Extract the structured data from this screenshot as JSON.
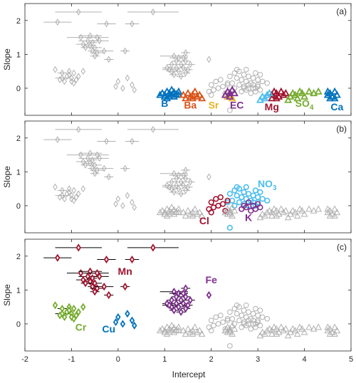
{
  "chart_data": {
    "type": "scatter",
    "xlabel": "Intercept",
    "ylabel": "Slope",
    "xlim": [
      -2,
      5
    ],
    "ylim": [
      -0.8,
      2.5
    ],
    "xticks": [
      "-2",
      "-1",
      "0",
      "1",
      "2",
      "3",
      "4",
      "5"
    ],
    "yticks": [
      "0",
      "1",
      "2"
    ],
    "grid": false,
    "colors": {
      "gray": "#b0b0b0",
      "B": "#0072bd",
      "Ba": "#d95319",
      "Sr": "#edb120",
      "EC": "#7e2f8e",
      "Mg": "#a2142f",
      "SO4": "#77ac30",
      "Ca": "#0072bd",
      "Cl": "#a2142f",
      "K": "#7e2f8e",
      "NO3": "#4dbeee",
      "Mn": "#a2142f",
      "Fe": "#7e2f8e",
      "Cr": "#77ac30",
      "Cu": "#0072bd"
    },
    "groups": {
      "diamonds": {
        "Mn": [
          [
            -1.3,
            1.95,
            0.3
          ],
          [
            -0.85,
            2.25,
            0.5
          ],
          [
            -0.25,
            1.9,
            0.2
          ],
          [
            0.75,
            2.25,
            0.55
          ],
          [
            0.3,
            1.9,
            0.15
          ],
          [
            -0.8,
            1.5,
            0.3
          ],
          [
            -0.6,
            1.55,
            0.25
          ],
          [
            -0.45,
            1.5,
            0.25
          ],
          [
            -0.4,
            1.4,
            0.2
          ],
          [
            -0.65,
            1.4,
            0.2
          ],
          [
            -0.75,
            1.3,
            0.15
          ],
          [
            -0.6,
            1.25,
            0.1
          ],
          [
            -0.5,
            1.2,
            0.15
          ],
          [
            -0.7,
            1.2,
            0.1
          ],
          [
            -0.55,
            1.1,
            0.1
          ],
          [
            -0.45,
            1.05,
            0.15
          ],
          [
            -0.3,
            1.1,
            0.2
          ],
          [
            -0.5,
            0.95,
            0.1
          ],
          [
            -0.2,
            0.85,
            0.1
          ],
          [
            0.15,
            1.1,
            0.1
          ],
          [
            -0.55,
            1.35,
            0.1
          ]
        ],
        "Fe": [
          [
            1.2,
            0.95,
            0.3
          ],
          [
            1.3,
            0.9,
            0.2
          ],
          [
            1.45,
            1.05,
            0.1
          ],
          [
            1.4,
            0.9,
            0.1
          ],
          [
            1.25,
            0.8,
            0.1
          ],
          [
            1.45,
            0.8,
            0.1
          ],
          [
            1.35,
            0.7,
            0.1
          ],
          [
            1.15,
            0.7,
            0.1
          ],
          [
            1.25,
            0.6,
            0.1
          ],
          [
            1.4,
            0.6,
            0.1
          ],
          [
            1.05,
            0.6,
            0.1
          ],
          [
            1.15,
            0.5,
            0.1
          ],
          [
            1.3,
            0.5,
            0.1
          ],
          [
            1.45,
            0.45,
            0.1
          ],
          [
            1.2,
            0.4,
            0.1
          ],
          [
            1.35,
            0.35,
            0.1
          ],
          [
            1.5,
            0.55,
            0.1
          ],
          [
            1.55,
            0.7,
            0.1
          ],
          [
            1.95,
            0.85,
            0
          ],
          [
            1.1,
            0.55,
            0.15
          ]
        ],
        "Cr": [
          [
            -1.35,
            0.55,
            0
          ],
          [
            -1.2,
            0.45,
            0.1
          ],
          [
            -1.05,
            0.5,
            0
          ],
          [
            -1.2,
            0.3,
            0.15
          ],
          [
            -1.1,
            0.35,
            0
          ],
          [
            -1.0,
            0.3,
            0
          ],
          [
            -0.9,
            0.25,
            0
          ],
          [
            -1.15,
            0.2,
            0
          ],
          [
            -1.0,
            0.2,
            0
          ],
          [
            -0.95,
            0.15,
            0
          ],
          [
            -1.05,
            0.4,
            0
          ],
          [
            -0.85,
            0.35,
            0
          ],
          [
            -1.25,
            0.25,
            0
          ],
          [
            -0.75,
            0.5,
            0
          ],
          [
            -0.95,
            0.45,
            0
          ]
        ],
        "Cu": [
          [
            0.0,
            0.2,
            0
          ],
          [
            -0.05,
            0.05,
            0
          ],
          [
            0.1,
            0.0,
            0
          ],
          [
            0.2,
            0.3,
            0
          ],
          [
            0.3,
            0.1,
            0
          ],
          [
            0.35,
            -0.05,
            0
          ]
        ]
      },
      "triangles": {
        "B": [
          [
            0.95,
            -0.15
          ],
          [
            1.0,
            -0.2
          ],
          [
            1.05,
            -0.1
          ],
          [
            1.1,
            -0.15
          ],
          [
            1.15,
            -0.2
          ],
          [
            1.2,
            -0.12
          ],
          [
            1.25,
            -0.18
          ],
          [
            1.3,
            -0.1
          ],
          [
            1.0,
            -0.25
          ],
          [
            1.1,
            -0.25
          ],
          [
            1.2,
            -0.25
          ],
          [
            1.3,
            -0.2
          ],
          [
            0.9,
            -0.2
          ],
          [
            1.05,
            -0.3
          ],
          [
            1.15,
            -0.05
          ]
        ],
        "Ba": [
          [
            1.4,
            -0.2
          ],
          [
            1.5,
            -0.15
          ],
          [
            1.55,
            -0.25
          ],
          [
            1.6,
            -0.2
          ],
          [
            1.65,
            -0.1
          ],
          [
            1.7,
            -0.25
          ],
          [
            1.75,
            -0.2
          ],
          [
            1.8,
            -0.3
          ],
          [
            1.45,
            -0.3
          ],
          [
            1.6,
            -0.3
          ]
        ],
        "Sr": [
          [
            2.3,
            -0.2
          ],
          [
            2.35,
            -0.25
          ],
          [
            2.4,
            -0.2
          ],
          [
            2.45,
            -0.3
          ]
        ],
        "EC": [
          [
            2.35,
            -0.1
          ],
          [
            2.4,
            -0.15
          ],
          [
            2.45,
            -0.05
          ],
          [
            2.5,
            -0.15
          ],
          [
            2.4,
            -0.25
          ],
          [
            2.3,
            -0.2
          ]
        ],
        "Mg": [
          [
            3.3,
            -0.2
          ],
          [
            3.35,
            -0.1
          ],
          [
            3.4,
            -0.15
          ],
          [
            3.45,
            -0.25
          ],
          [
            3.5,
            -0.1
          ],
          [
            3.55,
            -0.2
          ],
          [
            3.6,
            -0.15
          ],
          [
            3.4,
            -0.3
          ],
          [
            3.3,
            -0.3
          ]
        ],
        "MgCyan": [
          [
            3.1,
            -0.25
          ],
          [
            3.15,
            -0.3
          ],
          [
            3.2,
            -0.2
          ],
          [
            3.25,
            -0.15
          ],
          [
            3.05,
            -0.35
          ]
        ],
        "SO4": [
          [
            3.7,
            -0.25
          ],
          [
            3.75,
            -0.15
          ],
          [
            3.8,
            -0.2
          ],
          [
            3.85,
            -0.3
          ],
          [
            3.9,
            -0.1
          ],
          [
            3.95,
            -0.15
          ],
          [
            4.0,
            -0.25
          ],
          [
            4.1,
            -0.1
          ],
          [
            4.2,
            -0.15
          ],
          [
            4.3,
            -0.1
          ],
          [
            3.65,
            -0.35
          ]
        ],
        "Ca": [
          [
            4.5,
            -0.2
          ],
          [
            4.55,
            -0.15
          ],
          [
            4.6,
            -0.25
          ],
          [
            4.65,
            -0.1
          ],
          [
            4.7,
            -0.2
          ],
          [
            4.55,
            -0.3
          ],
          [
            4.65,
            -0.3
          ],
          [
            4.5,
            -0.1
          ]
        ]
      },
      "circles": {
        "NO3": [
          [
            2.5,
            0.45
          ],
          [
            2.6,
            0.5
          ],
          [
            2.7,
            0.4
          ],
          [
            2.8,
            0.35
          ],
          [
            2.9,
            0.3
          ],
          [
            2.95,
            0.45
          ],
          [
            3.0,
            0.25
          ],
          [
            3.1,
            0.2
          ],
          [
            3.2,
            0.15
          ],
          [
            2.65,
            0.25
          ],
          [
            2.75,
            0.2
          ],
          [
            2.85,
            0.15
          ],
          [
            2.55,
            0.3
          ],
          [
            2.45,
            0.15
          ],
          [
            2.35,
            0.1
          ],
          [
            2.4,
            -0.65
          ],
          [
            2.9,
            0.1
          ],
          [
            3.05,
            0.4
          ],
          [
            2.6,
            0.1
          ],
          [
            2.7,
            0.05
          ],
          [
            2.5,
            0.0
          ],
          [
            3.0,
            0.1
          ],
          [
            2.8,
            0.0
          ],
          [
            2.4,
            0.35
          ],
          [
            2.55,
            0.55
          ],
          [
            2.75,
            0.55
          ],
          [
            2.95,
            0.0
          ]
        ],
        "Cl": [
          [
            2.0,
            0.1
          ],
          [
            2.05,
            -0.05
          ],
          [
            2.1,
            0.2
          ],
          [
            2.2,
            0.25
          ],
          [
            2.15,
            0.0
          ],
          [
            2.25,
            0.05
          ],
          [
            2.3,
            -0.15
          ],
          [
            2.0,
            -0.2
          ],
          [
            2.35,
            0.15
          ],
          [
            1.95,
            -0.1
          ]
        ],
        "K": [
          [
            2.65,
            -0.1
          ],
          [
            2.75,
            -0.05
          ],
          [
            2.85,
            -0.15
          ],
          [
            2.9,
            0.0
          ],
          [
            2.95,
            -0.1
          ],
          [
            3.0,
            0.05
          ],
          [
            2.8,
            0.1
          ],
          [
            3.05,
            -0.05
          ],
          [
            2.7,
            0.0
          ]
        ]
      }
    },
    "panels": [
      {
        "tag": "(a)",
        "labels": [
          {
            "text": "B",
            "key": "B",
            "x": 1.0,
            "y": -0.55
          },
          {
            "text": "Ba",
            "key": "Ba",
            "x": 1.55,
            "y": -0.6
          },
          {
            "text": "Sr",
            "key": "Sr",
            "x": 2.05,
            "y": -0.6
          },
          {
            "text": "EC",
            "key": "EC",
            "x": 2.55,
            "y": -0.6
          },
          {
            "text": "Mg",
            "key": "Mg",
            "x": 3.3,
            "y": -0.65
          },
          {
            "text": "SO4",
            "key": "SO4",
            "x": 4.0,
            "y": -0.55
          },
          {
            "text": "Ca",
            "key": "Ca",
            "x": 4.7,
            "y": -0.65
          }
        ]
      },
      {
        "tag": "(b)",
        "labels": [
          {
            "text": "NO3",
            "key": "NO3",
            "x": 3.2,
            "y": 0.55
          },
          {
            "text": "Cl",
            "key": "Cl",
            "x": 1.85,
            "y": -0.55
          },
          {
            "text": "K",
            "key": "K",
            "x": 2.8,
            "y": -0.45
          }
        ]
      },
      {
        "tag": "(c)",
        "labels": [
          {
            "text": "Mn",
            "key": "Mn",
            "x": 0.15,
            "y": 1.45
          },
          {
            "text": "Fe",
            "key": "Fe",
            "x": 2.0,
            "y": 1.2
          },
          {
            "text": "Cr",
            "key": "Cr",
            "x": -0.8,
            "y": -0.2
          },
          {
            "text": "Cu",
            "key": "Cu",
            "x": -0.2,
            "y": -0.25
          }
        ]
      }
    ]
  }
}
